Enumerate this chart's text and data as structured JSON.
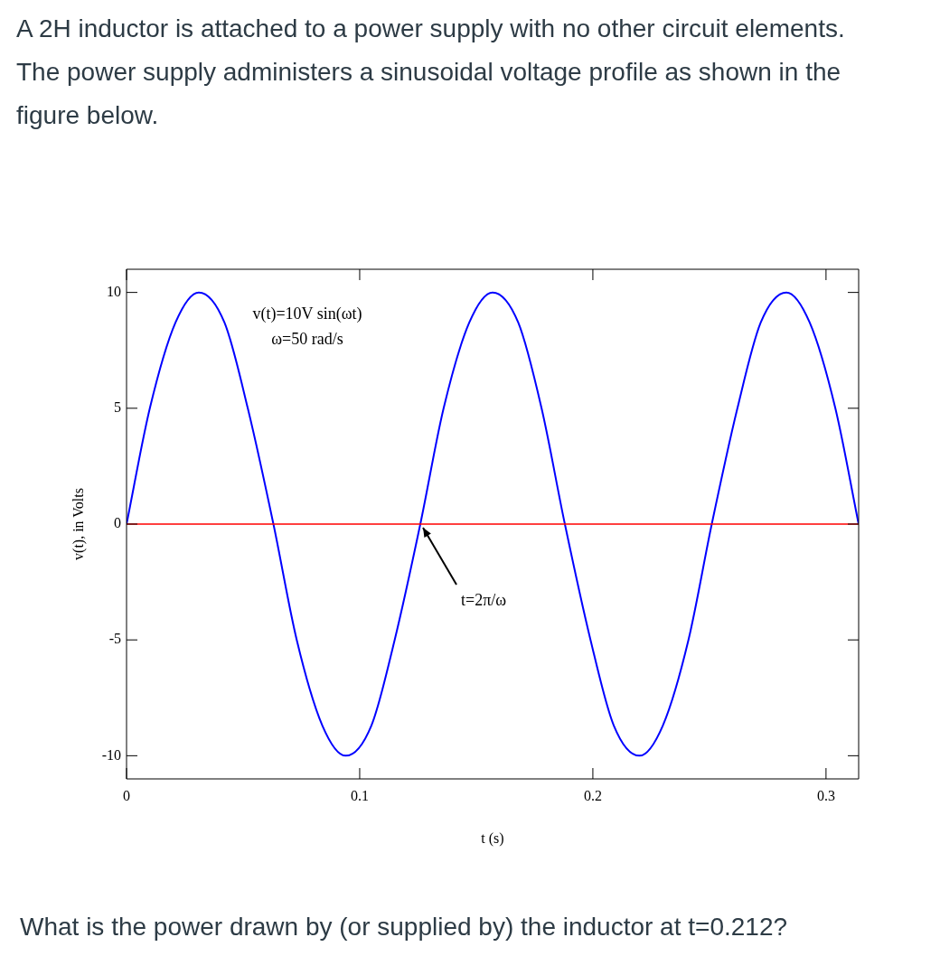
{
  "chart_data": {
    "type": "line",
    "title": "A 2H inductor is attached to a power supply with no other circuit elements. The power supply administers a sinusoidal voltage profile as shown in the figure below.",
    "xlabel": "t (s)",
    "ylabel": "v(t), in Volts",
    "x": [
      0,
      0.01,
      0.021,
      0.031,
      0.042,
      0.052,
      0.063,
      0.073,
      0.084,
      0.094,
      0.105,
      0.115,
      0.126,
      0.136,
      0.147,
      0.157,
      0.168,
      0.178,
      0.188,
      0.199,
      0.209,
      0.22,
      0.23,
      0.241,
      0.251,
      0.262,
      0.272,
      0.283,
      0.293,
      0.304,
      0.314
    ],
    "series": [
      {
        "color": "#0000ff",
        "values": [
          0,
          5,
          8.7,
          10,
          8.7,
          5,
          0,
          -5,
          -8.7,
          -10,
          -8.7,
          -5,
          0,
          5,
          8.7,
          10,
          8.7,
          5,
          0,
          -5,
          -8.7,
          -10,
          -8.7,
          -5,
          0,
          5,
          8.7,
          10,
          8.7,
          5,
          0
        ]
      }
    ],
    "xlim": [
      0,
      0.314
    ],
    "xticks": [
      0,
      0.1,
      0.2,
      0.3
    ],
    "ylim": [
      -11,
      11
    ],
    "yticks": [
      -10,
      -5,
      0,
      5,
      10
    ],
    "grid": false,
    "legend": false,
    "marker": "none",
    "line_style": "solid",
    "ref_lines": [
      {
        "axis": "y",
        "value": 0,
        "color": "#ff0000"
      }
    ],
    "annotations": [
      "v(t)=10V sin(ωt)",
      "ω=50 rad/s",
      {
        "text": "t=2π/ω",
        "x": 0.126,
        "y": 0
      },
      "What is the power drawn by (or supplied by) the inductor at t=0.212?"
    ]
  }
}
